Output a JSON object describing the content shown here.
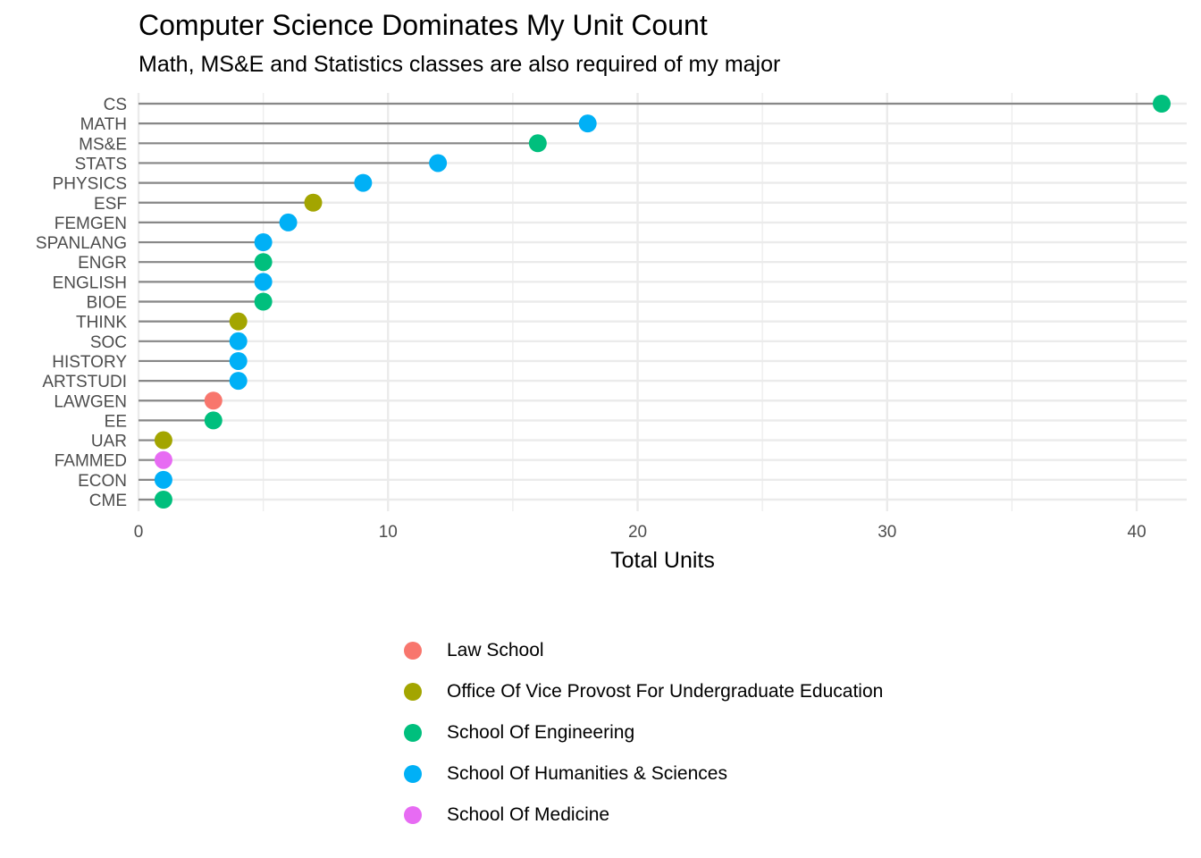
{
  "chart_data": {
    "type": "lollipop",
    "title": "Computer Science Dominates My Unit Count",
    "subtitle": "Math, MS&E and Statistics classes are also required of my major",
    "xlabel": "Total Units",
    "ylabel": "",
    "xlim": [
      0,
      41
    ],
    "xticks": [
      0,
      10,
      20,
      30,
      40
    ],
    "grid": true,
    "legend_position": "bottom",
    "groups": [
      {
        "name": "Law School",
        "color": "#F8766D"
      },
      {
        "name": "Office Of Vice Provost For Undergraduate Education",
        "color": "#A3A500"
      },
      {
        "name": "School Of Engineering",
        "color": "#00BF7D"
      },
      {
        "name": "School Of Humanities & Sciences",
        "color": "#00B0F6"
      },
      {
        "name": "School Of Medicine",
        "color": "#E76BF3"
      }
    ],
    "points": [
      {
        "category": "CS",
        "value": 41,
        "group": 2
      },
      {
        "category": "MATH",
        "value": 18,
        "group": 3
      },
      {
        "category": "MS&E",
        "value": 16,
        "group": 2
      },
      {
        "category": "STATS",
        "value": 12,
        "group": 3
      },
      {
        "category": "PHYSICS",
        "value": 9,
        "group": 3
      },
      {
        "category": "ESF",
        "value": 7,
        "group": 1
      },
      {
        "category": "FEMGEN",
        "value": 6,
        "group": 3
      },
      {
        "category": "SPANLANG",
        "value": 5,
        "group": 3
      },
      {
        "category": "ENGR",
        "value": 5,
        "group": 2
      },
      {
        "category": "ENGLISH",
        "value": 5,
        "group": 3
      },
      {
        "category": "BIOE",
        "value": 5,
        "group": 2
      },
      {
        "category": "THINK",
        "value": 4,
        "group": 1
      },
      {
        "category": "SOC",
        "value": 4,
        "group": 3
      },
      {
        "category": "HISTORY",
        "value": 4,
        "group": 3
      },
      {
        "category": "ARTSTUDI",
        "value": 4,
        "group": 3
      },
      {
        "category": "LAWGEN",
        "value": 3,
        "group": 0
      },
      {
        "category": "EE",
        "value": 3,
        "group": 2
      },
      {
        "category": "UAR",
        "value": 1,
        "group": 1
      },
      {
        "category": "FAMMED",
        "value": 1,
        "group": 4
      },
      {
        "category": "ECON",
        "value": 1,
        "group": 3
      },
      {
        "category": "CME",
        "value": 1,
        "group": 2
      }
    ]
  }
}
